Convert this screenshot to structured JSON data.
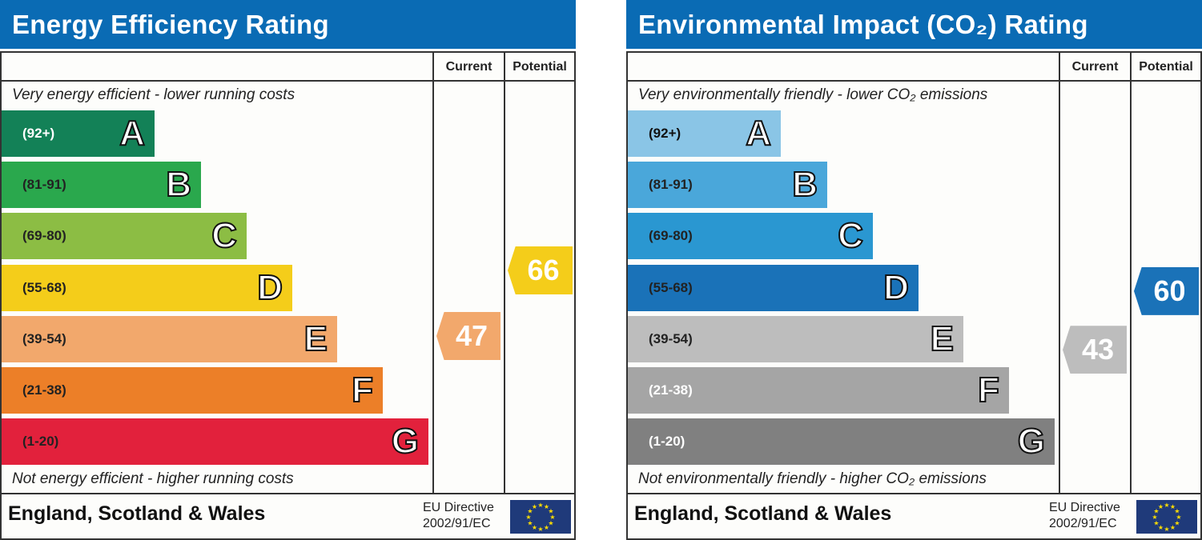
{
  "charts": [
    {
      "title": "Energy Efficiency Rating",
      "col_current": "Current",
      "col_potential": "Potential",
      "top_note": "Very energy efficient - lower running costs",
      "bottom_note": "Not energy efficient - higher running costs",
      "footer": "England, Scotland & Wales",
      "eu_line1": "EU Directive",
      "eu_line2": "2002/91/EC",
      "bands": [
        {
          "range": "(92+)",
          "letter": "A",
          "color": "#138157",
          "text_color": "#ffffff"
        },
        {
          "range": "(81-91)",
          "letter": "B",
          "color": "#2aa84d",
          "text_color": "#222222"
        },
        {
          "range": "(69-80)",
          "letter": "C",
          "color": "#8cbd44",
          "text_color": "#222222"
        },
        {
          "range": "(55-68)",
          "letter": "D",
          "color": "#f4cd1a",
          "text_color": "#222222"
        },
        {
          "range": "(39-54)",
          "letter": "E",
          "color": "#f2a86c",
          "text_color": "#222222"
        },
        {
          "range": "(21-38)",
          "letter": "F",
          "color": "#ec7f28",
          "text_color": "#222222"
        },
        {
          "range": "(1-20)",
          "letter": "G",
          "color": "#e2213c",
          "text_color": "#222222"
        }
      ],
      "current": {
        "value": "47",
        "color": "#f2a86c"
      },
      "potential": {
        "value": "66",
        "color": "#f4cd1a"
      }
    },
    {
      "title": "Environmental Impact (CO₂) Rating",
      "col_current": "Current",
      "col_potential": "Potential",
      "top_note": "Very environmentally friendly - lower CO₂ emissions",
      "bottom_note": "Not environmentally friendly - higher CO₂ emissions",
      "footer": "England, Scotland & Wales",
      "eu_line1": "EU Directive",
      "eu_line2": "2002/91/EC",
      "bands": [
        {
          "range": "(92+)",
          "letter": "A",
          "color": "#8ac5e6",
          "text_color": "#111111"
        },
        {
          "range": "(81-91)",
          "letter": "B",
          "color": "#4aa7da",
          "text_color": "#222222"
        },
        {
          "range": "(69-80)",
          "letter": "C",
          "color": "#2a97d1",
          "text_color": "#222222"
        },
        {
          "range": "(55-68)",
          "letter": "D",
          "color": "#1a72b8",
          "text_color": "#222222"
        },
        {
          "range": "(39-54)",
          "letter": "E",
          "color": "#bdbdbd",
          "text_color": "#222222"
        },
        {
          "range": "(21-38)",
          "letter": "F",
          "color": "#a5a5a5",
          "text_color": "#ffffff"
        },
        {
          "range": "(1-20)",
          "letter": "G",
          "color": "#808080",
          "text_color": "#ffffff"
        }
      ],
      "current": {
        "value": "43",
        "color": "#bdbdbd"
      },
      "potential": {
        "value": "60",
        "color": "#1a72b8"
      }
    }
  ]
}
